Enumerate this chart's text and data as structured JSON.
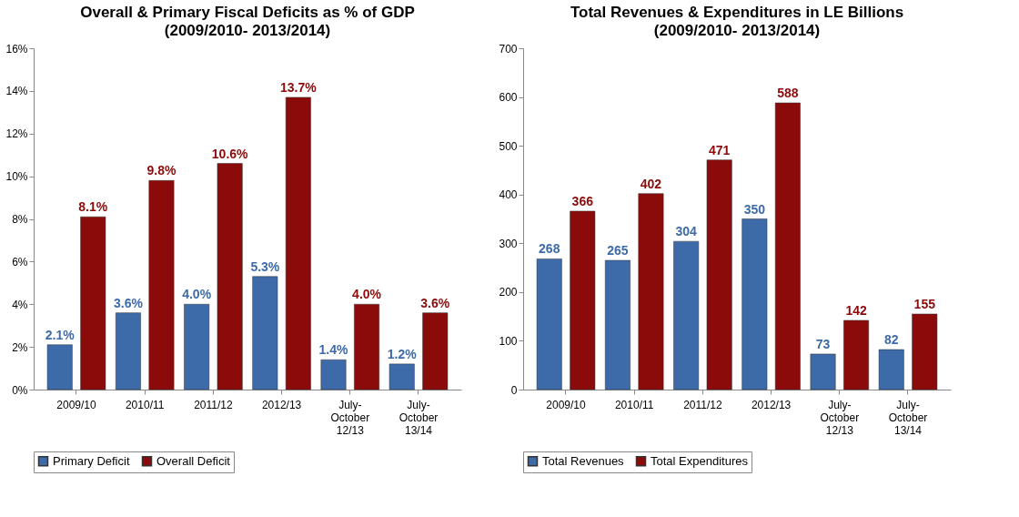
{
  "chart_data": [
    {
      "type": "bar",
      "title": "Overall & Primary Fiscal Deficits as % of GDP",
      "subtitle": "(2009/2010- 2013/2014)",
      "categories": [
        "2009/10",
        "2010/11",
        "2011/12",
        "2012/13",
        "July-\nOctober\n12/13",
        "July-\nOctober\n13/14"
      ],
      "series": [
        {
          "name": "Primary Deficit",
          "color": "#3d6aa8",
          "values": [
            2.1,
            3.6,
            4.0,
            5.3,
            1.4,
            1.2
          ],
          "value_labels": [
            "2.1%",
            "3.6%",
            "4.0%",
            "5.3%",
            "1.4%",
            "1.2%"
          ]
        },
        {
          "name": "Overall Deficit",
          "color": "#8b0a0a",
          "values": [
            8.1,
            9.8,
            10.6,
            13.7,
            4.0,
            3.6
          ],
          "value_labels": [
            "8.1%",
            "9.8%",
            "10.6%",
            "13.7%",
            "4.0%",
            "3.6%"
          ]
        }
      ],
      "ylim": [
        0,
        16
      ],
      "yticks": [
        {
          "value": 0,
          "label": "0%"
        },
        {
          "value": 2,
          "label": "2%"
        },
        {
          "value": 4,
          "label": "4%"
        },
        {
          "value": 6,
          "label": "6%"
        },
        {
          "value": 8,
          "label": "8%"
        },
        {
          "value": 10,
          "label": "10%"
        },
        {
          "value": 12,
          "label": "12%"
        },
        {
          "value": 14,
          "label": "14%"
        },
        {
          "value": 16,
          "label": "16%"
        }
      ],
      "grid": false,
      "legend": "bottom"
    },
    {
      "type": "bar",
      "title": "Total Revenues & Expenditures in LE Billions",
      "subtitle": "(2009/2010- 2013/2014)",
      "categories": [
        "2009/10",
        "2010/11",
        "2011/12",
        "2012/13",
        "July-\nOctober\n12/13",
        "July-\nOctober\n13/14"
      ],
      "series": [
        {
          "name": "Total Revenues",
          "color": "#3d6aa8",
          "values": [
            268,
            265,
            304,
            350,
            73,
            82
          ]
        },
        {
          "name": "Total Expenditures",
          "color": "#8b0a0a",
          "values": [
            366,
            402,
            471,
            588,
            142,
            155
          ]
        }
      ],
      "ylim": [
        0,
        700
      ],
      "yticks": [
        0,
        100,
        200,
        300,
        400,
        500,
        600,
        700
      ],
      "data_labels": true,
      "grid": false,
      "legend": "bottom"
    }
  ]
}
